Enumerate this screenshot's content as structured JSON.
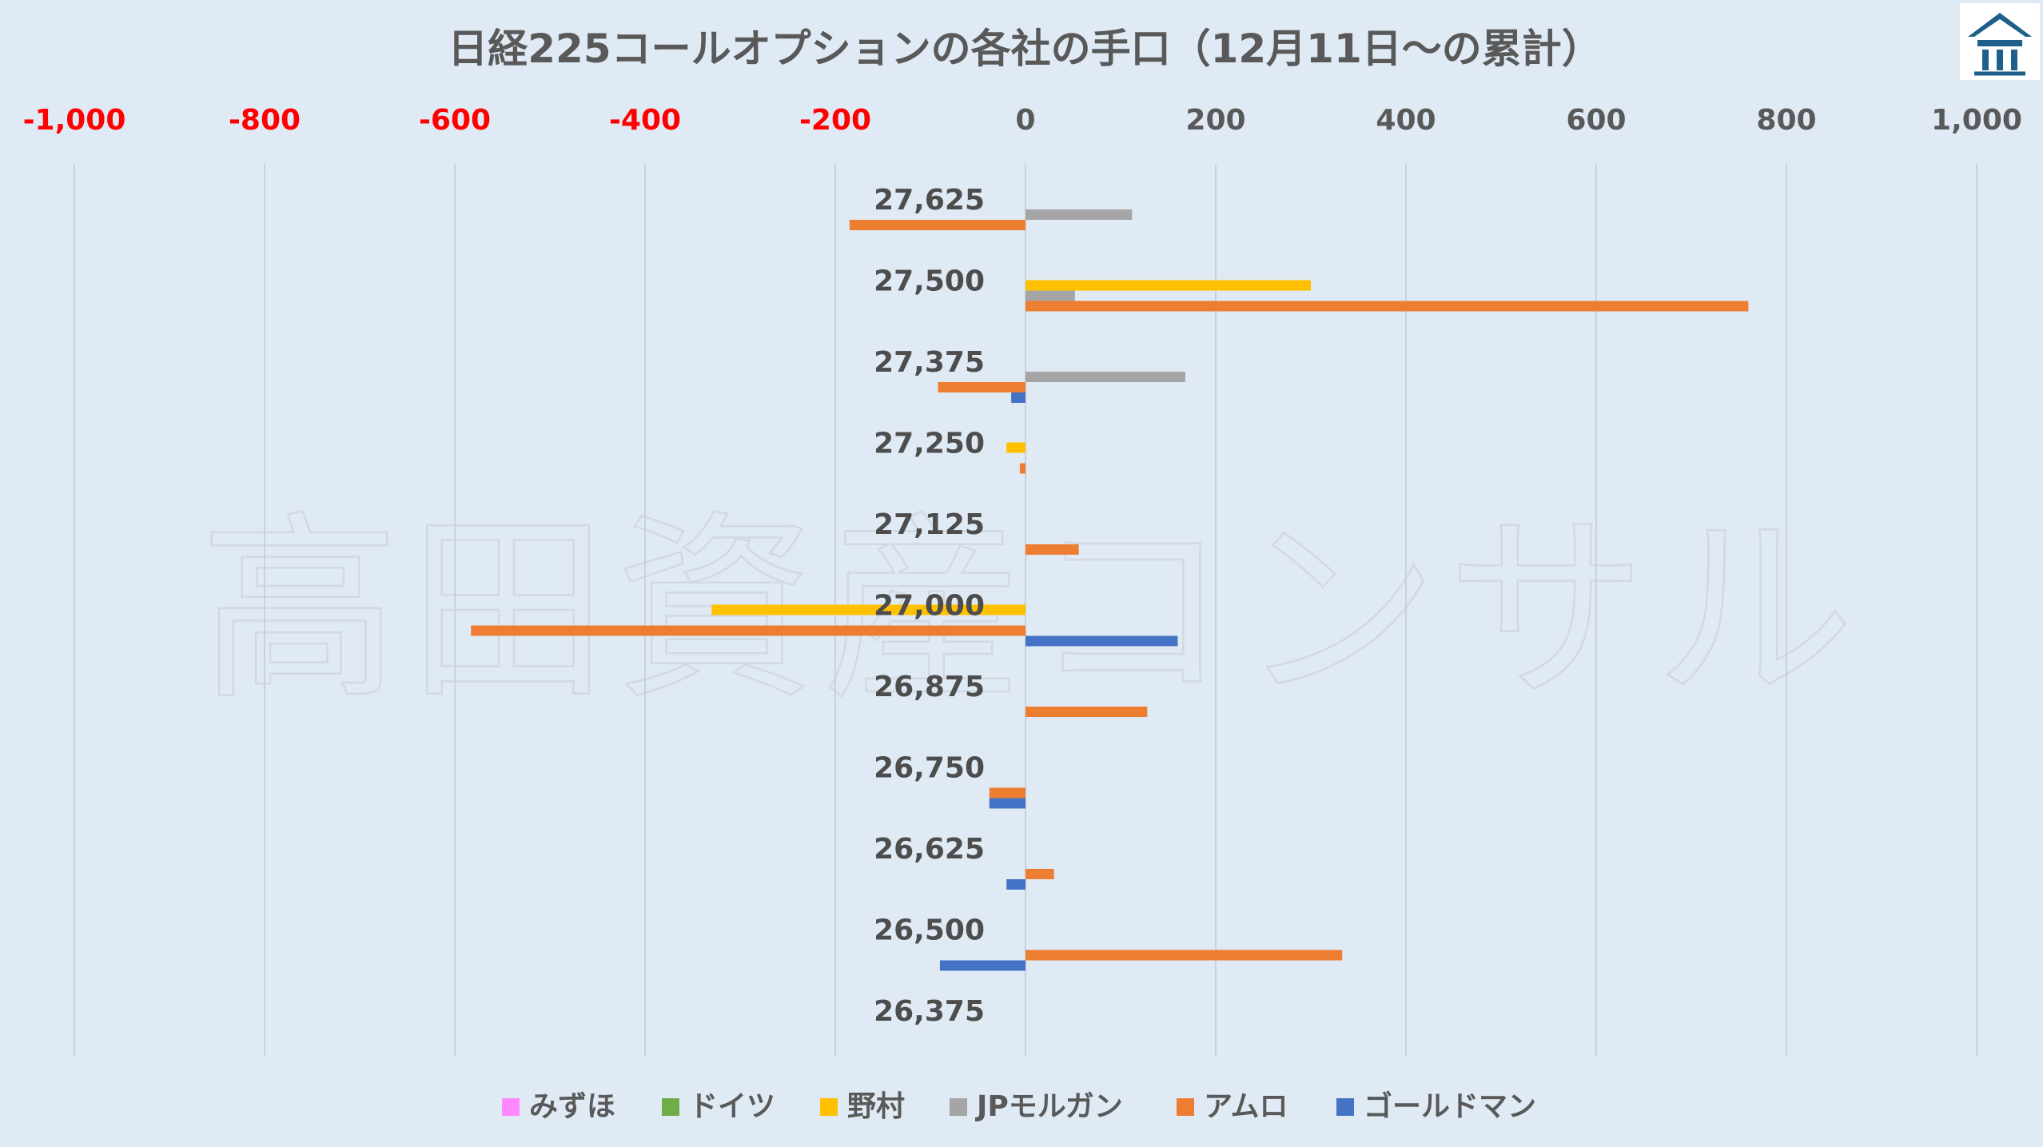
{
  "chart_data": {
    "type": "bar",
    "orientation": "horizontal",
    "title": "日経225コールオプションの各社の手口（12月11日～の累計）",
    "xlim": [
      -1000,
      1000
    ],
    "x_ticks": [
      {
        "value": -1000,
        "label": "-1,000"
      },
      {
        "value": -800,
        "label": "-800"
      },
      {
        "value": -600,
        "label": "-600"
      },
      {
        "value": -400,
        "label": "-400"
      },
      {
        "value": -200,
        "label": "-200"
      },
      {
        "value": 0,
        "label": "0"
      },
      {
        "value": 200,
        "label": "200"
      },
      {
        "value": 400,
        "label": "400"
      },
      {
        "value": 600,
        "label": "600"
      },
      {
        "value": 800,
        "label": "800"
      },
      {
        "value": 1000,
        "label": "1,000"
      }
    ],
    "negative_tick_color": "#ff0000",
    "positive_tick_color": "#595959",
    "grid": true,
    "legend_position": "bottom",
    "categories": [
      "27,625",
      "27,500",
      "27,375",
      "27,250",
      "27,125",
      "27,000",
      "26,875",
      "26,750",
      "26,625",
      "26,500",
      "26,375"
    ],
    "series": [
      {
        "name": "みずほ",
        "color": "#ff88ff",
        "values": [
          0,
          0,
          0,
          0,
          0,
          0,
          0,
          0,
          0,
          0,
          0
        ]
      },
      {
        "name": "ドイツ",
        "color": "#70ad47",
        "values": [
          0,
          0,
          0,
          0,
          0,
          0,
          0,
          0,
          0,
          0,
          0
        ]
      },
      {
        "name": "野村",
        "color": "#ffc000",
        "values": [
          0,
          300,
          0,
          -20,
          0,
          -330,
          0,
          0,
          0,
          0,
          0
        ]
      },
      {
        "name": "JPモルガン",
        "color": "#a5a5a5",
        "values": [
          112,
          52,
          168,
          0,
          0,
          0,
          0,
          0,
          0,
          0,
          0
        ]
      },
      {
        "name": "アムロ",
        "color": "#ed7d31",
        "values": [
          -185,
          760,
          -92,
          -6,
          56,
          -583,
          128,
          -38,
          30,
          333,
          0
        ]
      },
      {
        "name": "ゴールドマン",
        "color": "#4472c4",
        "values": [
          0,
          0,
          -15,
          0,
          0,
          160,
          0,
          -38,
          -20,
          -90,
          0
        ]
      }
    ]
  },
  "watermark": {
    "text": "高田資産コンサル"
  },
  "logo": {
    "name": "company-logo"
  }
}
